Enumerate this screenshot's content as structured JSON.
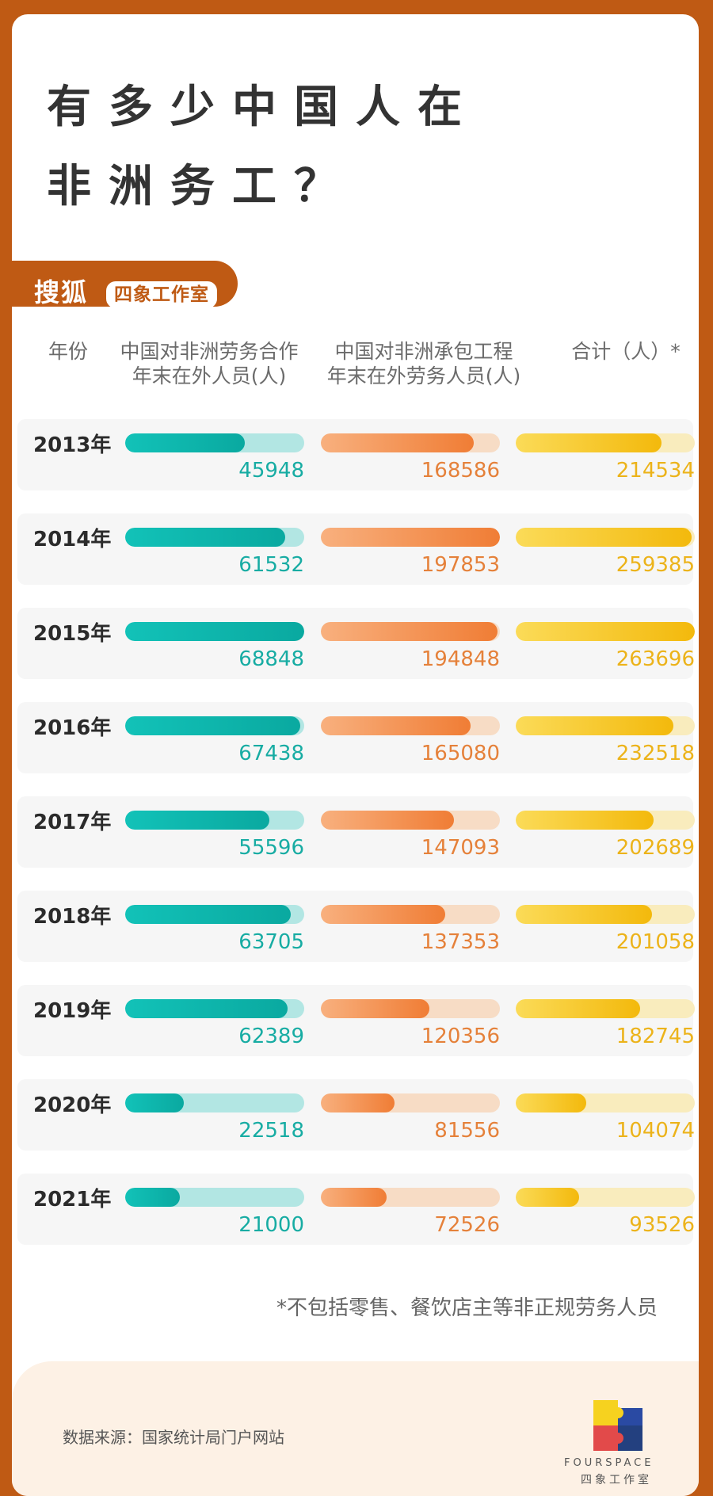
{
  "page": {
    "title_line1": "有多少中国人在",
    "title_line2": "非洲务工？",
    "brand": "搜狐",
    "brand_sub": "四象工作室"
  },
  "colors": {
    "background": "#bf5a14",
    "series1": "#12b5ac",
    "series2": "#f08a45",
    "series3": "#f3c21a"
  },
  "chart_data": {
    "type": "bar",
    "orientation": "horizontal",
    "title": "有多少中国人在非洲务工？",
    "columns": [
      {
        "key": "year",
        "label": "年份"
      },
      {
        "key": "labor",
        "label": "中国对非洲劳务合作\n年末在外人员(人)"
      },
      {
        "key": "contract",
        "label": "中国对非洲承包工程\n年末在外劳务人员(人)"
      },
      {
        "key": "total",
        "label": "合计（人）*"
      }
    ],
    "categories": [
      "2013年",
      "2014年",
      "2015年",
      "2016年",
      "2017年",
      "2018年",
      "2019年",
      "2020年",
      "2021年"
    ],
    "series": [
      {
        "name": "中国对非洲劳务合作年末在外人员(人)",
        "values": [
          45948,
          61532,
          68848,
          67438,
          55596,
          63705,
          62389,
          22518,
          21000
        ]
      },
      {
        "name": "中国对非洲承包工程年末在外劳务人员(人)",
        "values": [
          168586,
          197853,
          194848,
          165080,
          147093,
          137353,
          120356,
          81556,
          72526
        ]
      },
      {
        "name": "合计（人）*",
        "values": [
          214534,
          259385,
          263696,
          232518,
          202689,
          201058,
          182745,
          104074,
          93526
        ]
      }
    ],
    "footnote": "*不包括零售、餐饮店主等非正规劳务人员"
  },
  "footer": {
    "source": "数据来源：国家统计局门户网站",
    "logo_en": "FOURSPACE",
    "logo_cn": "四象工作室"
  }
}
